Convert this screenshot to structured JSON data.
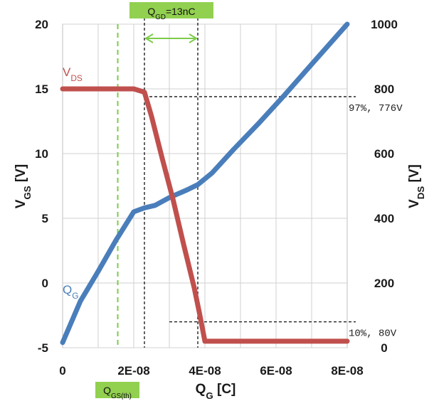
{
  "chart_data": {
    "type": "line",
    "x_label": {
      "main": "Q",
      "sub": "G",
      "unit": " [C]"
    },
    "y_left_label": {
      "main": "V",
      "sub": "GS",
      "unit": " [V]"
    },
    "y_right_label": {
      "main": "V",
      "sub": "DS",
      "unit": " [V]"
    },
    "x_range": [
      0,
      8e-08
    ],
    "y_left_range": [
      -5,
      20
    ],
    "y_right_range": [
      0,
      1000
    ],
    "x_ticks": [
      0,
      2e-08,
      4e-08,
      6e-08,
      8e-08
    ],
    "x_tick_labels": [
      "0",
      "2E-08",
      "4E-08",
      "6E-08",
      "8E-08"
    ],
    "y_left_ticks": [
      -5,
      0,
      5,
      10,
      15,
      20
    ],
    "y_left_tick_labels": [
      "-5",
      "0",
      "5",
      "10",
      "15",
      "20"
    ],
    "y_right_ticks": [
      0,
      200,
      400,
      600,
      800,
      1000
    ],
    "y_right_tick_labels": [
      "0",
      "200",
      "400",
      "600",
      "800",
      "1000"
    ],
    "series": [
      {
        "name": "QG",
        "label_main": "Q",
        "label_sub": "G",
        "axis": "left",
        "color": "#4a7ebb",
        "x": [
          0,
          5e-09,
          1e-08,
          1.5e-08,
          2e-08,
          2.3e-08,
          2.6e-08,
          3e-08,
          3.5e-08,
          3.8e-08,
          4.2e-08,
          4.8e-08,
          5.5e-08,
          6.2e-08,
          7e-08,
          8e-08
        ],
        "y": [
          -4.6,
          -1.4,
          0.9,
          3.3,
          5.5,
          5.8,
          6.0,
          6.6,
          7.2,
          7.6,
          8.5,
          10.3,
          12.3,
          14.4,
          16.9,
          20.0
        ]
      },
      {
        "name": "VDS",
        "label_main": "V",
        "label_sub": "DS",
        "axis": "right",
        "color": "#c0504d",
        "x": [
          0,
          1e-08,
          2e-08,
          2.3e-08,
          2.5e-08,
          2.8e-08,
          3.1e-08,
          3.4e-08,
          3.7e-08,
          3.85e-08,
          4e-08,
          5e-08,
          6e-08,
          7e-08,
          8e-08
        ],
        "y": [
          800,
          800,
          800,
          790,
          715,
          585,
          460,
          320,
          185,
          105,
          20,
          20,
          20,
          20,
          20
        ]
      }
    ],
    "vlines": [
      {
        "x": 1.55e-08,
        "style": "green-dashed",
        "color": "#7ccc4a"
      },
      {
        "x": 2.3e-08,
        "style": "black-dashed"
      },
      {
        "x": 3.8e-08,
        "style": "black-dashed"
      }
    ],
    "hlines": [
      {
        "y_right": 776,
        "x_from": 2.3e-08,
        "label": "97%, 776V"
      },
      {
        "y_right": 80,
        "x_from": 3e-08,
        "label": "10%, 80V"
      }
    ],
    "annotations": {
      "qgd": {
        "main": "Q",
        "sub": "GD",
        "text": "=13nC",
        "bg": "#92d050"
      },
      "qgs_th": {
        "main": "Q",
        "sub": "GS(th)",
        "bg": "#92d050"
      }
    },
    "grid": true,
    "gridline_color": "#d0d0d0",
    "arrow_color": "#7ccc4a"
  }
}
